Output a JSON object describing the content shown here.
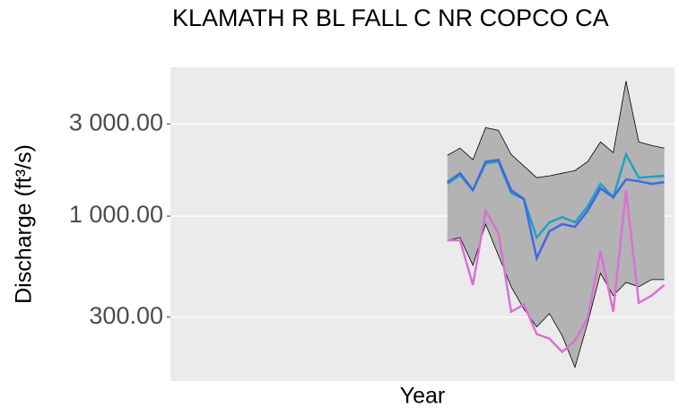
{
  "chart_data": {
    "type": "line",
    "title": "KLAMATH R BL FALL C NR COPCO CA",
    "xlabel": "Year",
    "ylabel": "Discharge (ft³/s)",
    "log_y": true,
    "grid": true,
    "x": [
      0,
      1,
      2,
      3,
      4,
      5,
      6,
      7,
      8,
      9,
      10,
      11,
      12,
      13,
      14,
      15,
      16,
      17
    ],
    "xlim": [
      -21.7,
      17.8
    ],
    "ylim": [
      140,
      5900
    ],
    "yticks": [
      {
        "value": 300,
        "label": "300.00"
      },
      {
        "value": 1000,
        "label": "1 000.00"
      },
      {
        "value": 3000,
        "label": "3 000.00"
      }
    ],
    "ribbon": {
      "color": "#b3b3b3",
      "upper": [
        2065,
        2249,
        1958,
        2873,
        2782,
        2086,
        1817,
        1581,
        1616,
        1668,
        1722,
        1916,
        2423,
        2131,
        5003,
        2423,
        2321,
        2249
      ],
      "lower": [
        750,
        774,
        556,
        909,
        626,
        431,
        330,
        267,
        313,
        240,
        165,
        281,
        506,
        387,
        454,
        431,
        469,
        469
      ]
    },
    "series": [
      {
        "color": "#da70d6",
        "values": [
          750,
          750,
          440,
          1066,
          817,
          320,
          348,
          245,
          232,
          198,
          227,
          297,
          660,
          320,
          1362,
          356,
          387,
          440
        ]
      },
      {
        "color": "#1ca3c4",
        "values": [
          1468,
          1633,
          1362,
          1875,
          1916,
          1319,
          1224,
          774,
          928,
          989,
          928,
          1124,
          1468,
          1251,
          2086,
          1581,
          1599,
          1616
        ]
      },
      {
        "color": "#4169e1",
        "values": [
          1500,
          1668,
          1362,
          1916,
          1958,
          1362,
          1224,
          605,
          835,
          909,
          880,
          1066,
          1393,
          1251,
          1549,
          1517,
          1468,
          1500
        ]
      }
    ]
  }
}
